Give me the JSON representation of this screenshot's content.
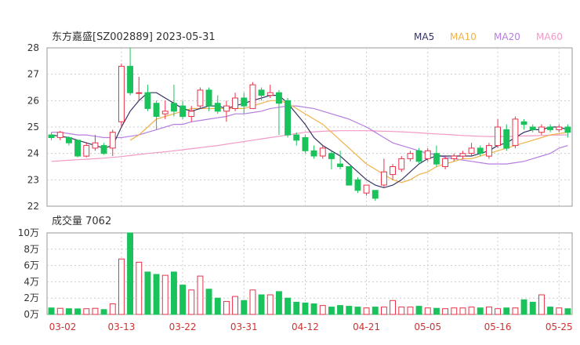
{
  "chart_data": [
    {
      "type": "candlestick",
      "title": "东方嘉盛[SZ002889] 2023-05-31",
      "legend": [
        {
          "label": "MA5",
          "color": "#333366"
        },
        {
          "label": "MA10",
          "color": "#f0b24a"
        },
        {
          "label": "MA20",
          "color": "#b57ee0"
        },
        {
          "label": "MA60",
          "color": "#f29ac8"
        }
      ],
      "yticks": [
        "28",
        "27",
        "26",
        "25",
        "24",
        "23",
        "22"
      ],
      "ylim": [
        22,
        28
      ],
      "xticks": [
        "03-02",
        "03-13",
        "03-22",
        "03-31",
        "04-12",
        "04-21",
        "05-05",
        "05-16",
        "05-25"
      ],
      "xtick_index": [
        0,
        8,
        15,
        22,
        29,
        36,
        43,
        51,
        58
      ],
      "up_color": "#e8334a",
      "down_color": "#19c25a",
      "candles": [
        [
          24.7,
          24.6,
          24.8,
          24.5
        ],
        [
          24.6,
          24.8,
          24.85,
          24.5
        ],
        [
          24.6,
          24.4,
          24.65,
          24.3
        ],
        [
          24.5,
          23.9,
          24.5,
          23.85
        ],
        [
          23.9,
          24.3,
          24.4,
          23.85
        ],
        [
          24.2,
          24.4,
          24.7,
          24.1
        ],
        [
          24.3,
          24.0,
          24.4,
          23.95
        ],
        [
          24.2,
          24.8,
          24.9,
          23.9
        ],
        [
          25.2,
          27.3,
          27.4,
          25.0
        ],
        [
          27.3,
          26.3,
          28.0,
          26.2
        ],
        [
          26.3,
          26.3,
          26.9,
          26.0
        ],
        [
          26.3,
          25.7,
          26.6,
          25.6
        ],
        [
          25.9,
          25.4,
          26.0,
          24.9
        ],
        [
          25.5,
          25.6,
          26.0,
          25.3
        ],
        [
          25.9,
          25.6,
          26.6,
          25.4
        ],
        [
          25.8,
          25.4,
          26.0,
          25.3
        ],
        [
          25.4,
          25.6,
          25.8,
          25.2
        ],
        [
          25.8,
          26.4,
          26.5,
          25.7
        ],
        [
          26.4,
          25.8,
          26.5,
          25.6
        ],
        [
          25.9,
          25.6,
          26.2,
          25.5
        ],
        [
          25.6,
          25.8,
          26.0,
          25.2
        ],
        [
          25.7,
          26.1,
          26.3,
          25.6
        ],
        [
          26.1,
          25.8,
          26.3,
          25.5
        ],
        [
          25.7,
          26.6,
          26.7,
          25.7
        ],
        [
          26.4,
          26.2,
          26.5,
          26.0
        ],
        [
          26.2,
          26.3,
          26.6,
          26.1
        ],
        [
          26.3,
          25.9,
          26.4,
          24.7
        ],
        [
          26.0,
          24.7,
          26.1,
          24.6
        ],
        [
          24.7,
          24.5,
          24.8,
          24.3
        ],
        [
          24.6,
          24.1,
          24.7,
          24.0
        ],
        [
          24.1,
          23.9,
          24.3,
          23.8
        ],
        [
          23.9,
          24.2,
          24.3,
          23.8
        ],
        [
          24.0,
          23.8,
          24.1,
          23.4
        ],
        [
          23.6,
          23.5,
          24.1,
          23.4
        ],
        [
          23.5,
          22.8,
          23.5,
          22.8
        ],
        [
          23.0,
          22.6,
          23.1,
          22.5
        ],
        [
          22.5,
          22.8,
          22.8,
          22.4
        ],
        [
          22.6,
          22.3,
          22.6,
          22.2
        ],
        [
          22.8,
          23.3,
          23.8,
          22.7
        ],
        [
          23.2,
          23.5,
          23.6,
          23.0
        ],
        [
          23.4,
          23.8,
          23.9,
          23.3
        ],
        [
          23.8,
          24.0,
          24.1,
          23.7
        ],
        [
          24.1,
          23.7,
          24.2,
          23.6
        ],
        [
          23.8,
          24.1,
          24.2,
          23.7
        ],
        [
          24.0,
          23.6,
          24.3,
          23.5
        ],
        [
          23.5,
          23.8,
          23.9,
          23.4
        ],
        [
          23.8,
          23.9,
          24.0,
          23.7
        ],
        [
          23.9,
          24.0,
          24.1,
          23.8
        ],
        [
          24.0,
          24.2,
          24.4,
          23.9
        ],
        [
          24.2,
          24.0,
          24.3,
          23.9
        ],
        [
          23.9,
          24.3,
          24.4,
          23.8
        ],
        [
          24.3,
          25.0,
          25.3,
          24.2
        ],
        [
          24.9,
          24.2,
          25.1,
          24.1
        ],
        [
          24.3,
          25.3,
          25.4,
          24.2
        ],
        [
          25.2,
          25.1,
          25.3,
          24.9
        ],
        [
          25.0,
          24.9,
          25.1,
          24.8
        ],
        [
          24.8,
          25.0,
          25.1,
          24.7
        ],
        [
          25.0,
          24.9,
          25.1,
          24.8
        ],
        [
          24.9,
          25.0,
          25.1,
          24.8
        ],
        [
          25.0,
          24.8,
          25.1,
          24.6
        ]
      ],
      "ma5": [
        24.7,
        24.65,
        24.6,
        24.5,
        24.4,
        24.3,
        24.2,
        24.3,
        25.0,
        25.6,
        26.0,
        26.3,
        26.3,
        26.1,
        25.9,
        25.7,
        25.6,
        25.7,
        25.8,
        25.8,
        25.7,
        25.8,
        25.9,
        26.0,
        26.1,
        26.2,
        26.2,
        25.9,
        25.5,
        25.1,
        24.6,
        24.3,
        24.1,
        23.9,
        23.6,
        23.3,
        23.0,
        22.8,
        22.7,
        22.8,
        23.0,
        23.3,
        23.6,
        23.8,
        23.9,
        23.9,
        23.9,
        23.9,
        23.9,
        24.0,
        24.1,
        24.3,
        24.4,
        24.6,
        24.8,
        24.9,
        24.9,
        25.0,
        25.0,
        24.9
      ],
      "ma10": [
        null,
        null,
        null,
        null,
        null,
        null,
        null,
        null,
        null,
        24.5,
        24.7,
        25.0,
        25.3,
        25.4,
        25.5,
        25.6,
        25.7,
        25.7,
        25.7,
        25.7,
        25.7,
        25.7,
        25.7,
        25.8,
        25.9,
        26.0,
        26.0,
        25.9,
        25.7,
        25.5,
        25.3,
        25.1,
        24.8,
        24.5,
        24.2,
        23.9,
        23.6,
        23.4,
        23.2,
        23.0,
        22.9,
        23.0,
        23.2,
        23.3,
        23.5,
        23.6,
        23.7,
        23.8,
        23.8,
        23.9,
        24.0,
        24.1,
        24.2,
        24.3,
        24.4,
        24.5,
        24.6,
        24.7,
        24.75,
        24.8
      ],
      "ma20": [
        24.8,
        24.8,
        24.75,
        24.7,
        24.7,
        24.65,
        24.6,
        24.6,
        24.6,
        24.65,
        24.7,
        24.8,
        24.9,
        25.0,
        25.1,
        25.1,
        25.2,
        25.25,
        25.3,
        25.35,
        25.4,
        25.5,
        25.5,
        25.55,
        25.6,
        25.7,
        25.75,
        25.8,
        25.8,
        25.75,
        25.7,
        25.6,
        25.5,
        25.4,
        25.3,
        25.15,
        25.0,
        24.8,
        24.6,
        24.4,
        24.3,
        24.2,
        24.1,
        24.0,
        23.95,
        23.85,
        23.8,
        23.75,
        23.7,
        23.65,
        23.6,
        23.6,
        23.6,
        23.65,
        23.7,
        23.8,
        23.9,
        24.0,
        24.2,
        24.3
      ],
      "ma60": [
        23.7,
        23.72,
        23.74,
        23.76,
        23.78,
        23.8,
        23.82,
        23.85,
        23.88,
        23.92,
        23.96,
        24.0,
        24.03,
        24.06,
        24.1,
        24.14,
        24.18,
        24.22,
        24.26,
        24.3,
        24.35,
        24.4,
        24.45,
        24.5,
        24.55,
        24.6,
        24.65,
        24.7,
        24.75,
        24.8,
        24.82,
        24.84,
        24.85,
        24.86,
        24.86,
        24.86,
        24.86,
        24.85,
        24.84,
        24.83,
        24.82,
        24.8,
        24.78,
        24.76,
        24.74,
        24.72,
        24.7,
        24.68,
        24.66,
        24.65,
        24.64,
        24.64,
        24.64,
        24.65,
        24.66,
        24.67,
        24.68,
        24.69,
        24.7,
        24.7
      ]
    },
    {
      "type": "bar",
      "title": "成交量 7062",
      "yticks": [
        "10万",
        "8万",
        "6万",
        "4万",
        "2万",
        "0万"
      ],
      "ylim": [
        0,
        100000
      ],
      "values": [
        8000,
        7500,
        7000,
        6800,
        7000,
        7500,
        6000,
        13000,
        68000,
        100000,
        64000,
        52000,
        49000,
        48000,
        52000,
        36000,
        30000,
        47000,
        31000,
        20000,
        16000,
        22000,
        17000,
        30000,
        24000,
        24000,
        28000,
        20000,
        15000,
        14000,
        13000,
        11000,
        9000,
        11000,
        10000,
        9000,
        8000,
        9000,
        9000,
        17000,
        9000,
        9000,
        10000,
        8000,
        7500,
        7000,
        8000,
        8000,
        9000,
        8000,
        9000,
        7000,
        8000,
        8000,
        18000,
        15000,
        24000,
        9000,
        8000,
        7062
      ]
    }
  ]
}
